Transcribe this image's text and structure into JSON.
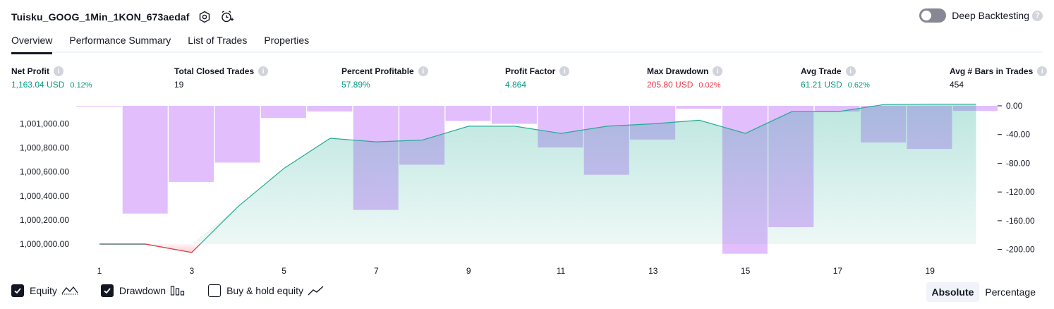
{
  "header": {
    "strategy_name": "Tuisku_GOOG_1Min_1KON_673aedaf",
    "deep_backtesting_label": "Deep Backtesting",
    "deep_backtesting_on": false,
    "icons": [
      "settings-icon",
      "add-alert-icon",
      "help-icon"
    ]
  },
  "tabs": [
    {
      "label": "Overview",
      "active": true
    },
    {
      "label": "Performance Summary",
      "active": false
    },
    {
      "label": "List of Trades",
      "active": false
    },
    {
      "label": "Properties",
      "active": false
    }
  ],
  "metrics": [
    {
      "label": "Net Profit",
      "value": "1,163.04 USD",
      "percent": "0.12%",
      "color": "green"
    },
    {
      "label": "Total Closed Trades",
      "value": "19",
      "percent": "",
      "color": "dark"
    },
    {
      "label": "Percent Profitable",
      "value": "57.89%",
      "percent": "",
      "color": "green"
    },
    {
      "label": "Profit Factor",
      "value": "4.864",
      "percent": "",
      "color": "green"
    },
    {
      "label": "Max Drawdown",
      "value": "205.80 USD",
      "percent": "0.02%",
      "color": "red"
    },
    {
      "label": "Avg Trade",
      "value": "61.21 USD",
      "percent": "0.62%",
      "color": "green"
    },
    {
      "label": "Avg # Bars in Trades",
      "value": "454",
      "percent": "",
      "color": "dark"
    }
  ],
  "legend": {
    "equity": {
      "label": "Equity",
      "checked": true,
      "icon": "equity-line-icon"
    },
    "drawdown": {
      "label": "Drawdown",
      "checked": true,
      "icon": "drawdown-bars-icon"
    },
    "buy_hold": {
      "label": "Buy & hold equity",
      "checked": false,
      "icon": "buy-hold-line-icon"
    }
  },
  "mode": {
    "absolute": "Absolute",
    "percentage": "Percentage",
    "selected": "absolute"
  },
  "colors": {
    "equity_line": "#22ab94",
    "equity_fill": "#c4ebe0",
    "equity_negative": "#f23645",
    "drawdown_bar": "#ce93fc",
    "positive": "#089981",
    "negative": "#f23645"
  },
  "chart_data": {
    "type": "area",
    "x_ticks": [
      "1",
      "3",
      "5",
      "7",
      "9",
      "11",
      "13",
      "15",
      "17",
      "19"
    ],
    "left_ticks": [
      "1,001,000.00",
      "1,000,800.00",
      "1,000,600.00",
      "1,000,400.00",
      "1,000,200.00",
      "1,000,000.00"
    ],
    "right_ticks": [
      "0.00",
      "-40.00",
      "-80.00",
      "-120.00",
      "-160.00",
      "-200.00"
    ],
    "left_range": [
      999900,
      1001150
    ],
    "right_range": [
      -210,
      0
    ],
    "series": [
      {
        "name": "Equity",
        "x": [
          1,
          2,
          3,
          4,
          5,
          6,
          7,
          8,
          9,
          10,
          11,
          12,
          13,
          14,
          15,
          16,
          17,
          18,
          19,
          20
        ],
        "values": [
          1000000,
          1000000,
          999930,
          1000310,
          1000630,
          1000880,
          1000850,
          1000865,
          1000980,
          1000980,
          1000920,
          1000980,
          1001000,
          1001030,
          1000920,
          1001100,
          1001100,
          1001160,
          1001163,
          1001163
        ]
      },
      {
        "name": "Drawdown",
        "x": [
          1,
          2,
          3,
          4,
          5,
          6,
          7,
          8,
          9,
          10,
          11,
          12,
          13,
          14,
          15,
          16,
          17,
          18,
          19,
          20
        ],
        "values": [
          -1,
          -150,
          -106,
          -79,
          -17,
          -8,
          -145,
          -82,
          -21,
          -25,
          -58,
          -96,
          -47,
          -4,
          -206,
          -169,
          -8,
          -51,
          -60,
          -7
        ]
      }
    ]
  }
}
